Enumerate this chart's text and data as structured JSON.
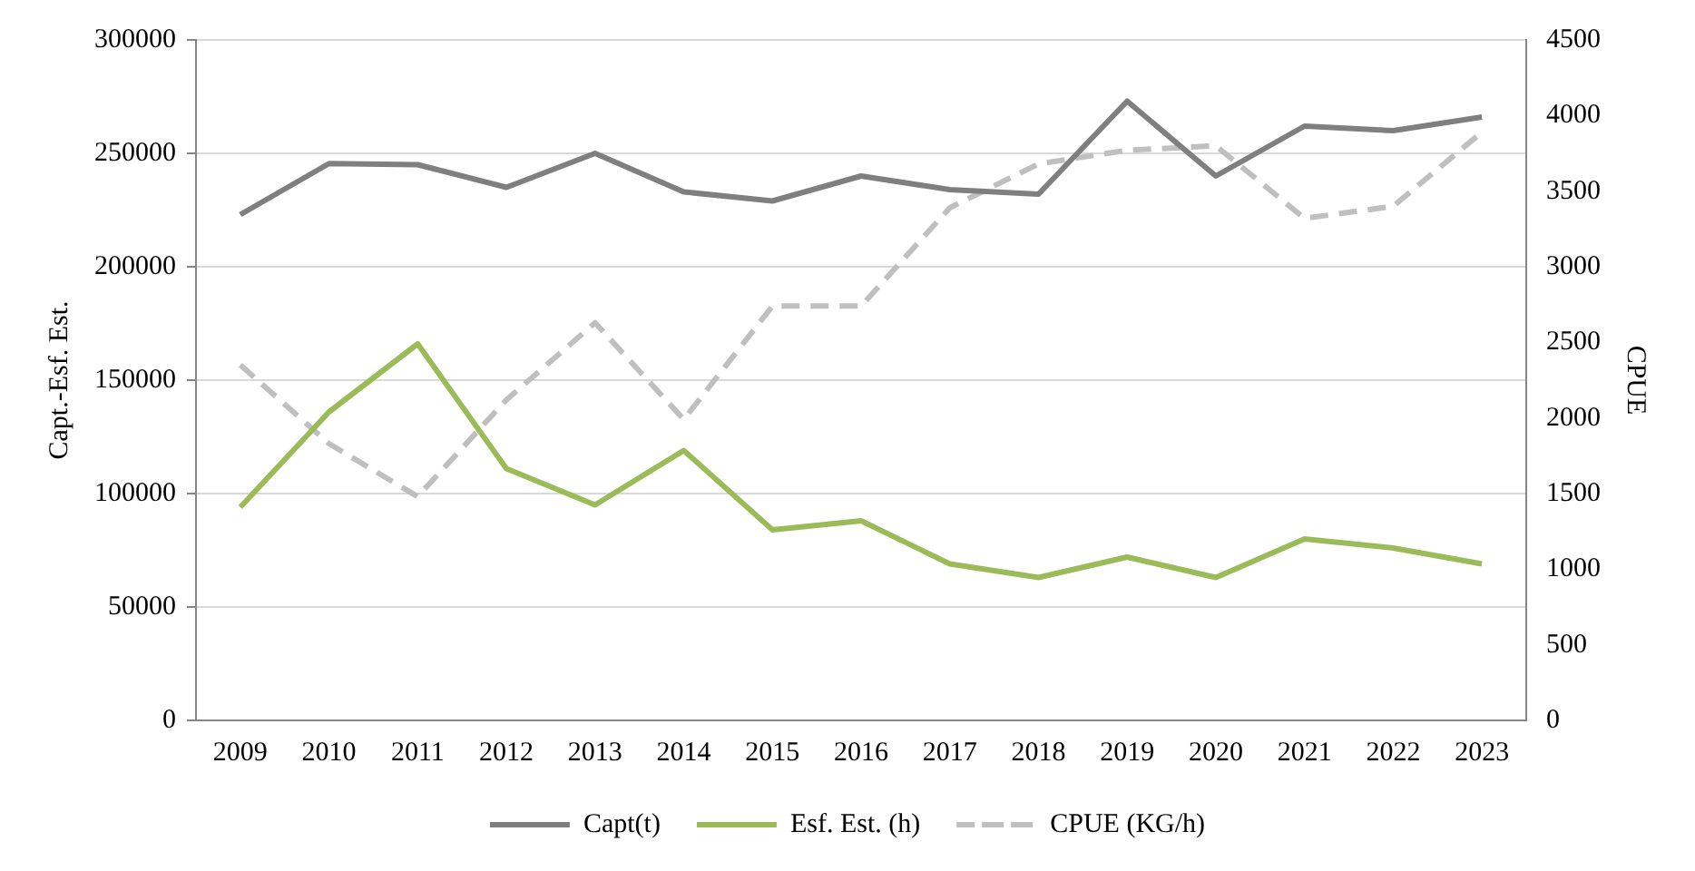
{
  "chart_data": {
    "type": "line",
    "categories": [
      "2009",
      "2010",
      "2011",
      "2012",
      "2013",
      "2014",
      "2015",
      "2016",
      "2017",
      "2018",
      "2019",
      "2020",
      "2021",
      "2022",
      "2023"
    ],
    "series": [
      {
        "name": "Capt(t)",
        "color": "#7f7f7f",
        "line_style": "solid",
        "values": [
          223000,
          245500,
          245000,
          235000,
          250000,
          233000,
          229000,
          240000,
          234000,
          232000,
          273000,
          240000,
          262000,
          260000,
          266000
        ]
      },
      {
        "name": "Esf. Est. (h)",
        "color": "#9bbb59",
        "line_style": "solid",
        "values": [
          94000,
          136000,
          166000,
          111000,
          95000,
          119000,
          84000,
          88000,
          69000,
          63000,
          72000,
          63000,
          80000,
          76000,
          69000
        ]
      },
      {
        "name": "CPUE (KG/h)",
        "color": "#bfbfbf",
        "line_style": "dashed",
        "axis": "y2",
        "values": [
          2350,
          1830,
          1480,
          2120,
          2630,
          1990,
          2740,
          2740,
          3390,
          3680,
          3770,
          3800,
          3320,
          3400,
          3890
        ]
      }
    ],
    "ylabel": "Capt.-Esf. Est.",
    "y2label": "CPUE",
    "ylim": [
      0,
      300000
    ],
    "yticks": [
      0,
      50000,
      100000,
      150000,
      200000,
      250000,
      300000
    ],
    "y2lim": [
      0,
      4500
    ],
    "y2ticks": [
      0,
      500,
      1000,
      1500,
      2000,
      2500,
      3000,
      3500,
      4000,
      4500
    ],
    "grid": "y",
    "legend": "bottom",
    "marker": "none"
  }
}
